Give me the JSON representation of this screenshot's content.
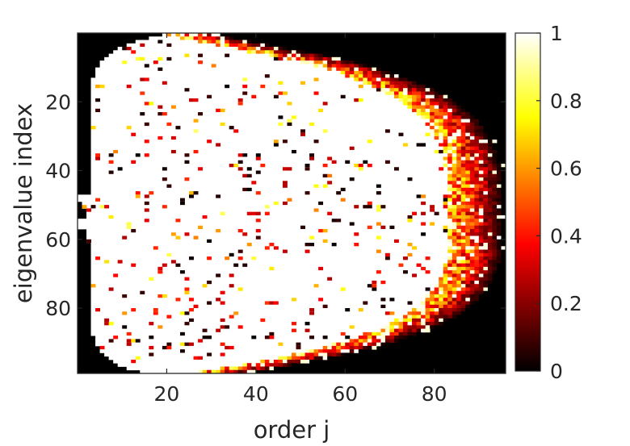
{
  "chart_data": {
    "type": "heatmap",
    "title": "",
    "xlabel": "order j",
    "ylabel": "eigenvalue index",
    "x_range": [
      0,
      96
    ],
    "y_range": [
      0,
      99
    ],
    "y_reversed": true,
    "x_ticks": [
      20,
      40,
      60,
      80
    ],
    "y_ticks": [
      20,
      40,
      60,
      80
    ],
    "grid": false,
    "colormap": "hot",
    "colorbar": {
      "range": [
        0,
        1
      ],
      "ticks": [
        "0",
        "0.2",
        "0.4",
        "0.6",
        "0.8",
        "1"
      ]
    },
    "rows": 99,
    "cols": 96,
    "row_extent": [
      [
        20,
        33
      ],
      [
        17,
        36
      ],
      [
        14,
        40
      ],
      [
        12,
        44
      ],
      [
        10,
        48
      ],
      [
        9,
        52
      ],
      [
        8,
        56
      ],
      [
        7,
        60
      ],
      [
        6,
        63
      ],
      [
        6,
        66
      ],
      [
        5,
        69
      ],
      [
        5,
        71
      ],
      [
        5,
        73
      ],
      [
        4,
        75
      ],
      [
        4,
        77
      ],
      [
        4,
        79
      ],
      [
        4,
        81
      ],
      [
        4,
        82
      ],
      [
        4,
        84
      ],
      [
        4,
        85
      ],
      [
        4,
        86
      ],
      [
        4,
        87
      ],
      [
        4,
        88
      ],
      [
        4,
        89
      ],
      [
        4,
        90
      ],
      [
        4,
        91
      ],
      [
        4,
        91
      ],
      [
        4,
        92
      ],
      [
        4,
        92
      ],
      [
        4,
        93
      ],
      [
        4,
        93
      ],
      [
        4,
        94
      ],
      [
        4,
        94
      ],
      [
        4,
        94
      ],
      [
        4,
        95
      ],
      [
        4,
        95
      ],
      [
        4,
        95
      ],
      [
        4,
        95
      ],
      [
        4,
        96
      ],
      [
        4,
        96
      ],
      [
        4,
        96
      ],
      [
        4,
        96
      ],
      [
        4,
        96
      ],
      [
        4,
        96
      ],
      [
        4,
        96
      ],
      [
        4,
        96
      ],
      [
        4,
        96
      ],
      [
        1,
        96
      ],
      [
        1,
        96
      ],
      [
        2,
        96
      ],
      [
        2,
        96
      ],
      [
        3,
        96
      ],
      [
        3,
        96
      ],
      [
        3,
        96
      ],
      [
        1,
        96
      ],
      [
        1,
        96
      ],
      [
        1,
        96
      ],
      [
        3,
        96
      ],
      [
        3,
        96
      ],
      [
        3,
        96
      ],
      [
        3,
        96
      ],
      [
        4,
        96
      ],
      [
        4,
        96
      ],
      [
        4,
        96
      ],
      [
        4,
        96
      ],
      [
        4,
        96
      ],
      [
        4,
        96
      ],
      [
        4,
        95
      ],
      [
        4,
        95
      ],
      [
        4,
        95
      ],
      [
        4,
        94
      ],
      [
        4,
        94
      ],
      [
        4,
        94
      ],
      [
        4,
        93
      ],
      [
        4,
        93
      ],
      [
        4,
        92
      ],
      [
        4,
        91
      ],
      [
        4,
        91
      ],
      [
        4,
        90
      ],
      [
        4,
        89
      ],
      [
        4,
        88
      ],
      [
        4,
        87
      ],
      [
        4,
        86
      ],
      [
        4,
        84
      ],
      [
        4,
        83
      ],
      [
        4,
        81
      ],
      [
        4,
        79
      ],
      [
        4,
        77
      ],
      [
        5,
        75
      ],
      [
        5,
        73
      ],
      [
        5,
        70
      ],
      [
        6,
        67
      ],
      [
        6,
        64
      ],
      [
        7,
        61
      ],
      [
        8,
        57
      ],
      [
        9,
        53
      ],
      [
        10,
        49
      ],
      [
        12,
        45
      ],
      [
        15,
        40
      ]
    ]
  }
}
